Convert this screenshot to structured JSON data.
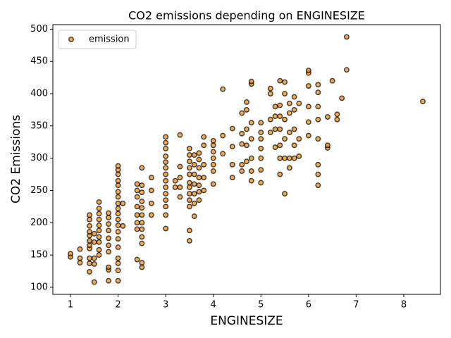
{
  "chart_data": {
    "type": "scatter",
    "title": "CO2 emissions depending on ENGINESIZE",
    "x_label": "ENGINESIZE",
    "y_label": "CO2 Emissions",
    "legend": "upper left",
    "xlim": [
      0.63,
      8.77
    ],
    "ylim": [
      89,
      507
    ],
    "xticks": [
      1,
      2,
      3,
      4,
      5,
      6,
      7,
      8
    ],
    "yticks": [
      100,
      150,
      200,
      250,
      300,
      350,
      400,
      450,
      500
    ],
    "series": [
      {
        "name": "emission",
        "color": "#ff8c00",
        "edgecolor": "#000000",
        "x": [
          1.0,
          1.0,
          1.2,
          1.2,
          1.2,
          1.4,
          1.4,
          1.4,
          1.4,
          1.4,
          1.4,
          1.4,
          1.4,
          1.4,
          1.4,
          1.4,
          1.5,
          1.5,
          1.5,
          1.5,
          1.5,
          1.6,
          1.6,
          1.6,
          1.6,
          1.6,
          1.6,
          1.6,
          1.6,
          1.6,
          1.6,
          1.8,
          1.8,
          1.8,
          1.8,
          1.8,
          1.8,
          1.8,
          1.8,
          1.8,
          1.8,
          2.0,
          2.0,
          2.0,
          2.0,
          2.0,
          2.0,
          2.0,
          2.0,
          2.0,
          2.0,
          2.0,
          2.0,
          2.0,
          2.0,
          2.0,
          2.0,
          2.0,
          2.0,
          2.0,
          2.1,
          2.1,
          2.4,
          2.4,
          2.4,
          2.4,
          2.4,
          2.4,
          2.4,
          2.4,
          2.5,
          2.5,
          2.5,
          2.5,
          2.5,
          2.5,
          2.5,
          2.5,
          2.5,
          2.5,
          2.5,
          2.5,
          2.7,
          2.7,
          2.7,
          2.7,
          3.0,
          3.0,
          3.0,
          3.0,
          3.0,
          3.0,
          3.0,
          3.0,
          3.0,
          3.0,
          3.0,
          3.0,
          3.0,
          3.0,
          3.2,
          3.2,
          3.3,
          3.3,
          3.3,
          3.3,
          3.3,
          3.5,
          3.5,
          3.5,
          3.5,
          3.5,
          3.5,
          3.5,
          3.5,
          3.5,
          3.5,
          3.5,
          3.5,
          3.6,
          3.6,
          3.6,
          3.6,
          3.6,
          3.6,
          3.6,
          3.7,
          3.7,
          3.7,
          3.7,
          3.7,
          3.7,
          3.7,
          3.8,
          3.8,
          3.8,
          3.8,
          3.8,
          4.0,
          4.0,
          4.0,
          4.0,
          4.0,
          4.0,
          4.0,
          4.2,
          4.2,
          4.2,
          4.4,
          4.4,
          4.4,
          4.4,
          4.6,
          4.6,
          4.6,
          4.6,
          4.6,
          4.7,
          4.7,
          4.7,
          4.7,
          4.7,
          4.8,
          4.8,
          4.8,
          4.8,
          4.8,
          4.8,
          4.8,
          5.0,
          5.0,
          5.0,
          5.0,
          5.0,
          5.0,
          5.0,
          5.2,
          5.2,
          5.2,
          5.2,
          5.3,
          5.3,
          5.3,
          5.3,
          5.4,
          5.4,
          5.4,
          5.4,
          5.4,
          5.4,
          5.4,
          5.5,
          5.5,
          5.5,
          5.5,
          5.5,
          5.5,
          5.6,
          5.6,
          5.6,
          5.6,
          5.6,
          5.7,
          5.7,
          5.7,
          5.7,
          5.7,
          5.8,
          5.8,
          5.8,
          6.0,
          6.0,
          6.0,
          6.0,
          6.0,
          6.0,
          6.2,
          6.2,
          6.2,
          6.2,
          6.2,
          6.2,
          6.2,
          6.2,
          6.4,
          6.4,
          6.4,
          6.5,
          6.6,
          6.6,
          6.7,
          6.8,
          6.8,
          8.4
        ],
        "values": [
          147,
          152,
          138,
          145,
          159,
          124,
          137,
          145,
          160,
          165,
          172,
          180,
          186,
          195,
          205,
          212,
          108,
          136,
          145,
          170,
          183,
          150,
          158,
          170,
          178,
          188,
          196,
          205,
          214,
          222,
          232,
          110,
          127,
          131,
          155,
          165,
          176,
          188,
          198,
          208,
          215,
          110,
          126,
          137,
          145,
          162,
          175,
          186,
          196,
          205,
          214,
          222,
          230,
          240,
          248,
          258,
          265,
          275,
          282,
          288,
          195,
          230,
          143,
          190,
          200,
          212,
          225,
          240,
          250,
          260,
          131,
          138,
          168,
          178,
          190,
          200,
          212,
          223,
          233,
          247,
          258,
          285,
          212,
          230,
          250,
          270,
          191,
          212,
          225,
          235,
          245,
          255,
          265,
          275,
          285,
          294,
          303,
          315,
          324,
          333,
          255,
          265,
          240,
          255,
          270,
          287,
          336,
          172,
          188,
          225,
          235,
          245,
          255,
          262,
          275,
          285,
          295,
          305,
          315,
          210,
          230,
          245,
          260,
          275,
          290,
          305,
          235,
          248,
          258,
          270,
          285,
          298,
          308,
          250,
          270,
          290,
          320,
          333,
          260,
          280,
          290,
          300,
          310,
          320,
          327,
          307,
          335,
          407,
          270,
          290,
          318,
          346,
          280,
          290,
          322,
          338,
          370,
          295,
          320,
          345,
          375,
          387,
          265,
          280,
          300,
          330,
          355,
          415,
          419,
          262,
          282,
          300,
          315,
          330,
          340,
          355,
          340,
          360,
          400,
          408,
          317,
          345,
          365,
          380,
          275,
          300,
          320,
          345,
          365,
          382,
          420,
          245,
          300,
          330,
          360,
          400,
          418,
          285,
          300,
          340,
          370,
          385,
          300,
          320,
          345,
          375,
          395,
          303,
          330,
          385,
          335,
          356,
          380,
          412,
          432,
          436,
          258,
          275,
          290,
          330,
          360,
          380,
          402,
          414,
          316,
          320,
          364,
          420,
          360,
          368,
          393,
          437,
          488,
          388
        ]
      }
    ]
  }
}
